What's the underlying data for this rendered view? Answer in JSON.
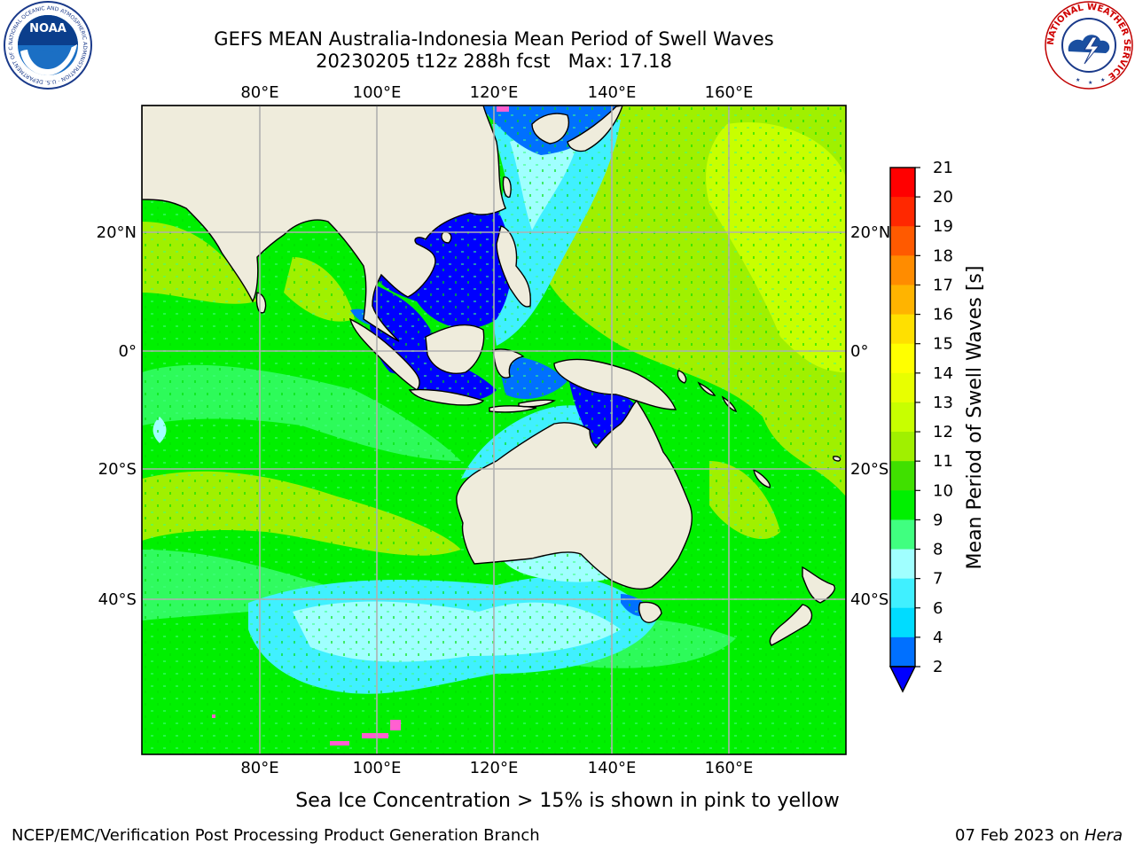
{
  "header": {
    "title_line1": "GEFS MEAN Australia-Indonesia Mean Period of Swell Waves",
    "title_line2": "20230205 t12z 288h fcst   Max: 17.18"
  },
  "logos": {
    "noaa_text": "NOAA",
    "noaa_ring": "NATIONAL OCEANIC AND ATMOSPHERIC ADMINISTRATION · U.S. DEPARTMENT OF COMMERCE",
    "nws_ring": "NATIONAL WEATHER SERVICE"
  },
  "map": {
    "lon_labels": [
      "80°E",
      "100°E",
      "120°E",
      "140°E",
      "160°E"
    ],
    "lat_labels": [
      "20°N",
      "0°",
      "20°S",
      "40°S"
    ],
    "colors": {
      "land": "#efecdc",
      "grid": "#b0b0b0",
      "coast": "#000000"
    }
  },
  "colorbar": {
    "label": "Mean Period of Swell Waves [s]",
    "ticks": [
      "2",
      "4",
      "6",
      "7",
      "8",
      "9",
      "10",
      "11",
      "12",
      "13",
      "14",
      "15",
      "16",
      "17",
      "18",
      "19",
      "20",
      "21"
    ],
    "colors": [
      "#0000ff",
      "#0070ff",
      "#00dcff",
      "#40f0ff",
      "#a0ffff",
      "#40ff80",
      "#00f000",
      "#40e000",
      "#a0f000",
      "#c8ff00",
      "#e8ff00",
      "#ffff00",
      "#ffe000",
      "#ffb400",
      "#ff8c00",
      "#ff5a00",
      "#ff2800",
      "#ff0000"
    ]
  },
  "note": "Sea Ice Concentration > 15% is shown in pink to yellow",
  "footer": {
    "left": "NCEP/EMC/Verification Post Processing Product Generation Branch",
    "date": "07 Feb 2023",
    "on": "on",
    "host": "Hera"
  }
}
